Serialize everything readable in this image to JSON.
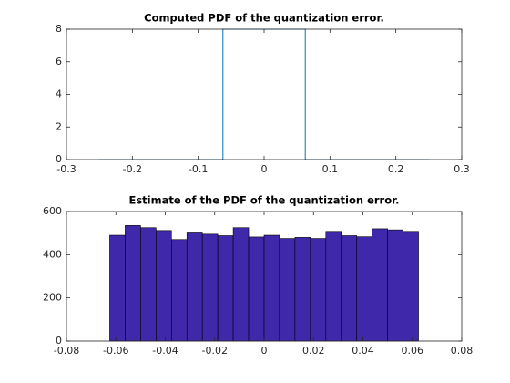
{
  "chart_data": [
    {
      "type": "line",
      "title": "Computed PDF of the quantization error.",
      "x": [
        -0.25,
        -0.0625,
        -0.0625,
        0.0625,
        0.0625,
        0.25
      ],
      "values": [
        0,
        0,
        8,
        8,
        0,
        0
      ],
      "color": "#0072bd",
      "xlim": [
        -0.3,
        0.3
      ],
      "xticks": [
        -0.3,
        -0.2,
        -0.1,
        0,
        0.1,
        0.2,
        0.3
      ],
      "ylim": [
        0,
        8
      ],
      "yticks": [
        0,
        2,
        4,
        6,
        8
      ],
      "grid": false
    },
    {
      "type": "histogram",
      "title": "Estimate of the PDF of the quantization error.",
      "bins": [
        -0.0625,
        -0.05625,
        -0.05,
        -0.04375,
        -0.0375,
        -0.03125,
        -0.025,
        -0.01875,
        -0.0125,
        -0.00625,
        0,
        0.00625,
        0.0125,
        0.01875,
        0.025,
        0.03125,
        0.0375,
        0.04375,
        0.05,
        0.05625,
        0.0625
      ],
      "values": [
        490,
        535,
        525,
        512,
        470,
        505,
        495,
        488,
        525,
        482,
        490,
        475,
        480,
        475,
        508,
        488,
        483,
        520,
        515,
        508
      ],
      "color": "#4028aa",
      "xlim": [
        -0.08,
        0.08
      ],
      "xticks": [
        -0.08,
        -0.06,
        -0.04,
        -0.02,
        0,
        0.02,
        0.04,
        0.06,
        0.08
      ],
      "ylim": [
        0,
        600
      ],
      "yticks": [
        0,
        200,
        400,
        600
      ],
      "grid": false
    }
  ]
}
